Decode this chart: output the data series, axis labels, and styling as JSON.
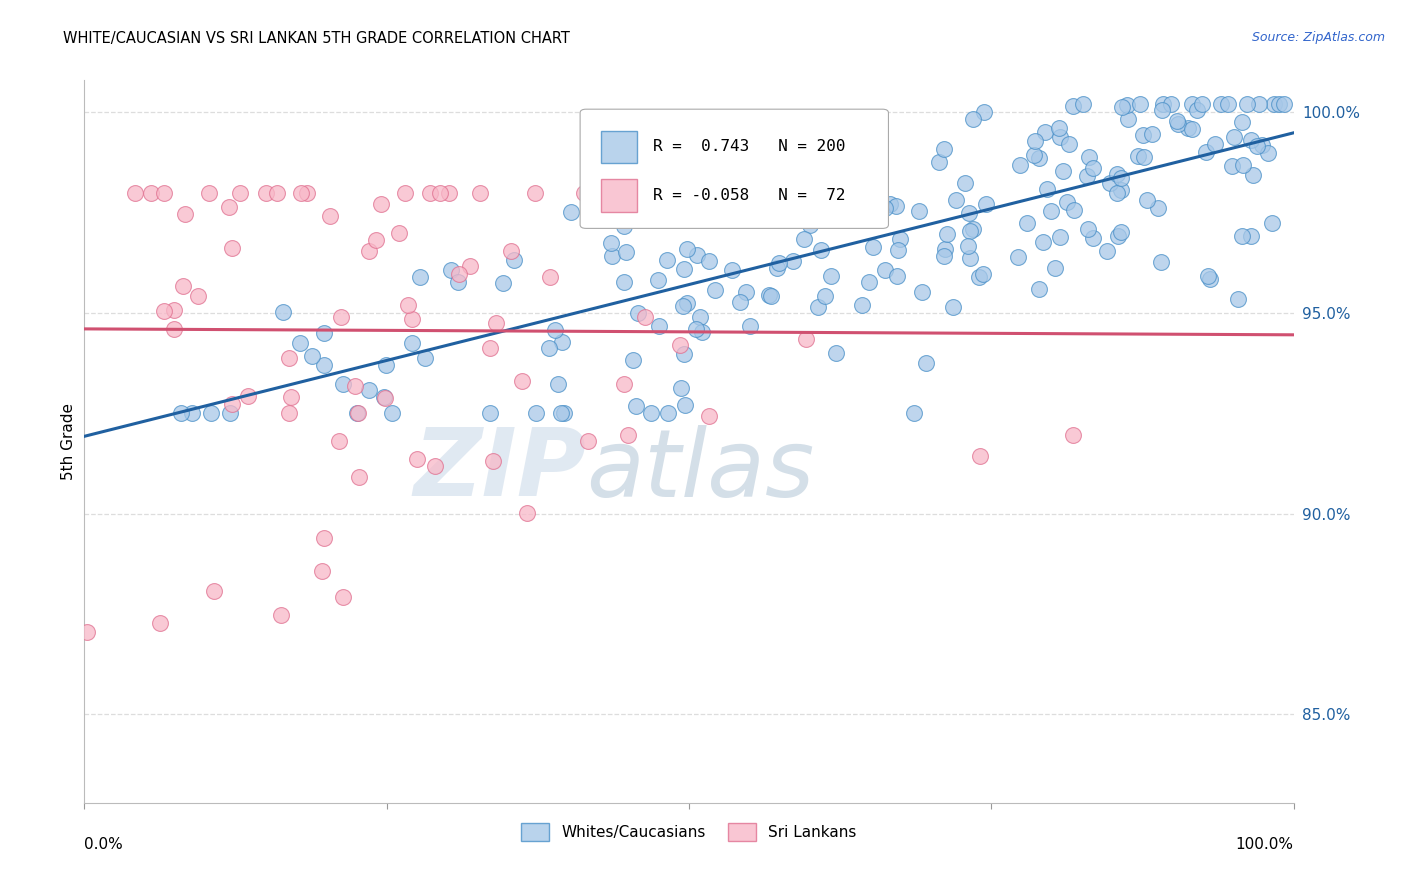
{
  "title": "WHITE/CAUCASIAN VS SRI LANKAN 5TH GRADE CORRELATION CHART",
  "source": "Source: ZipAtlas.com",
  "ylabel": "5th Grade",
  "watermark_zip": "ZIP",
  "watermark_atlas": "atlas",
  "blue_R": 0.743,
  "blue_N": 200,
  "pink_R": -0.058,
  "pink_N": 72,
  "x_min": 0.0,
  "x_max": 1.0,
  "y_min": 0.828,
  "y_max": 1.008,
  "yticks": [
    0.85,
    0.9,
    0.95,
    1.0
  ],
  "ytick_labels": [
    "85.0%",
    "90.0%",
    "95.0%",
    "100.0%"
  ],
  "blue_color": "#a8c8e8",
  "blue_edge_color": "#4a90c8",
  "blue_line_color": "#2060a0",
  "pink_color": "#f8b8c8",
  "pink_edge_color": "#e07090",
  "pink_line_color": "#d05070",
  "background_color": "#ffffff",
  "grid_color": "#dddddd",
  "blue_line_start_y": 0.938,
  "blue_line_end_y": 0.993,
  "pink_line_start_y": 0.952,
  "pink_line_end_y": 0.937
}
